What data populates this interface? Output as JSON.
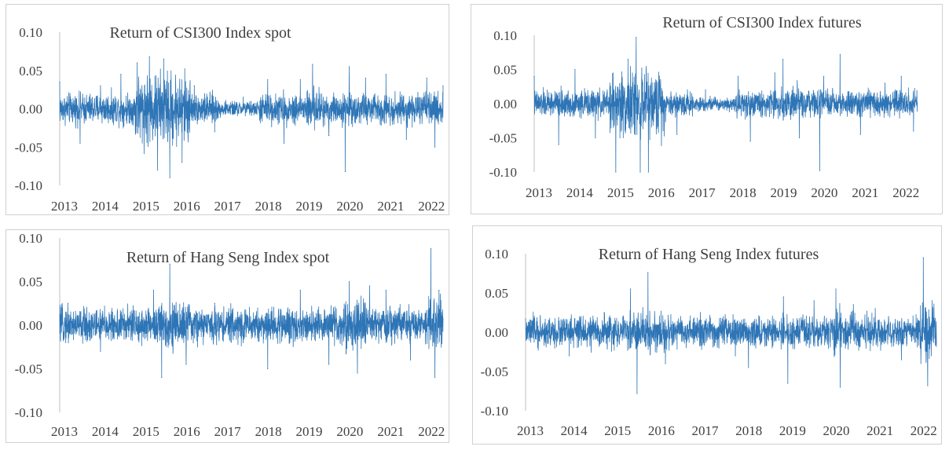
{
  "colors": {
    "series": "#2e75b6",
    "axis": "#bfbfbf",
    "text": "#404040"
  },
  "chart_data": [
    {
      "type": "line",
      "title": "Return of CSI300 Index spot",
      "xlabel": "",
      "ylabel": "",
      "ylim": [
        -0.1,
        0.1
      ],
      "yticks": [
        -0.1,
        -0.05,
        0.0,
        0.05,
        0.1
      ],
      "ytick_labels": [
        "-0.10",
        "-0.05",
        "0.00",
        "0.05",
        "0.10"
      ],
      "xlim": [
        2013,
        2022.4
      ],
      "xtick_labels": [
        "2013",
        "2014",
        "2015",
        "2016",
        "2017",
        "2018",
        "2019",
        "2020",
        "2021",
        "2022"
      ],
      "grid": false,
      "legend": "none",
      "series": [
        {
          "x": [
            2013.0,
            2013.5,
            2014.0,
            2014.5,
            2014.9,
            2015.2,
            2015.4,
            2015.55,
            2015.7,
            2016.0,
            2016.3,
            2016.8,
            2017.5,
            2018.1,
            2018.5,
            2018.9,
            2019.2,
            2019.6,
            2020.0,
            2020.1,
            2020.5,
            2021.0,
            2021.5,
            2022.0,
            2022.2,
            2022.4
          ],
          "values": [
            0.035,
            -0.045,
            0.03,
            0.045,
            0.06,
            0.068,
            -0.08,
            0.065,
            -0.09,
            -0.07,
            0.03,
            -0.03,
            0.015,
            0.038,
            -0.045,
            0.038,
            0.058,
            -0.035,
            -0.082,
            0.055,
            0.04,
            0.045,
            -0.04,
            0.04,
            -0.05,
            0.03
          ]
        }
      ]
    },
    {
      "type": "line",
      "title": "Return of CSI300 Index futures",
      "xlabel": "",
      "ylabel": "",
      "ylim": [
        -0.1,
        0.1
      ],
      "yticks": [
        -0.1,
        -0.05,
        0.0,
        0.05,
        0.1
      ],
      "ytick_labels": [
        "-0.10",
        "-0.05",
        "0.00",
        "0.05",
        "0.10"
      ],
      "xlim": [
        2013,
        2022.4
      ],
      "xtick_labels": [
        "2013",
        "2014",
        "2015",
        "2016",
        "2017",
        "2018",
        "2019",
        "2020",
        "2021",
        "2022"
      ],
      "grid": false,
      "legend": "none",
      "series": [
        {
          "x": [
            2013.0,
            2013.6,
            2014.0,
            2014.5,
            2015.0,
            2015.3,
            2015.5,
            2015.6,
            2015.8,
            2016.1,
            2016.5,
            2017.2,
            2018.0,
            2018.3,
            2018.9,
            2019.1,
            2019.5,
            2020.0,
            2020.1,
            2020.5,
            2021.0,
            2021.6,
            2022.0,
            2022.3
          ],
          "values": [
            0.04,
            -0.06,
            0.05,
            -0.05,
            -0.1,
            0.065,
            0.097,
            -0.1,
            -0.1,
            0.035,
            -0.045,
            0.02,
            0.04,
            -0.055,
            0.045,
            0.065,
            -0.05,
            -0.098,
            0.04,
            0.072,
            -0.045,
            0.03,
            0.04,
            -0.04
          ]
        }
      ]
    },
    {
      "type": "line",
      "title": "Return of Hang Seng Index spot",
      "xlabel": "",
      "ylabel": "",
      "ylim": [
        -0.1,
        0.1
      ],
      "yticks": [
        -0.1,
        -0.05,
        0.0,
        0.05,
        0.1
      ],
      "ytick_labels": [
        "-0.10",
        "-0.05",
        "0.00",
        "0.05",
        "0.10"
      ],
      "xlim": [
        2013,
        2022.4
      ],
      "xtick_labels": [
        "2013",
        "2014",
        "2015",
        "2016",
        "2017",
        "2018",
        "2019",
        "2020",
        "2021",
        "2022"
      ],
      "grid": false,
      "legend": "none",
      "series": [
        {
          "x": [
            2013.2,
            2014.0,
            2014.8,
            2015.3,
            2015.5,
            2015.7,
            2016.1,
            2016.8,
            2017.5,
            2018.1,
            2018.9,
            2019.6,
            2020.1,
            2020.3,
            2020.6,
            2021.0,
            2021.6,
            2022.1,
            2022.2,
            2022.3
          ],
          "values": [
            0.025,
            -0.03,
            0.022,
            0.04,
            -0.06,
            0.07,
            -0.045,
            0.025,
            -0.02,
            -0.05,
            0.04,
            -0.045,
            0.05,
            -0.055,
            0.045,
            0.04,
            -0.04,
            0.088,
            -0.06,
            0.04
          ]
        }
      ]
    },
    {
      "type": "line",
      "title": "Return of Hang Seng Index futures",
      "xlabel": "",
      "ylabel": "",
      "ylim": [
        -0.1,
        0.1
      ],
      "yticks": [
        -0.1,
        -0.05,
        0.0,
        0.05,
        0.1
      ],
      "ytick_labels": [
        "-0.10",
        "-0.05",
        "0.00",
        "0.05",
        "0.10"
      ],
      "xlim": [
        2013,
        2022.4
      ],
      "xtick_labels": [
        "2013",
        "2014",
        "2015",
        "2016",
        "2017",
        "2018",
        "2019",
        "2020",
        "2021",
        "2022"
      ],
      "grid": false,
      "legend": "none",
      "series": [
        {
          "x": [
            2013.2,
            2014.0,
            2014.8,
            2015.4,
            2015.55,
            2015.8,
            2016.2,
            2017.0,
            2017.8,
            2018.1,
            2018.9,
            2019.0,
            2019.6,
            2020.1,
            2020.2,
            2020.5,
            2021.0,
            2021.6,
            2022.1,
            2022.2,
            2022.3
          ],
          "values": [
            0.02,
            -0.03,
            0.025,
            0.055,
            -0.078,
            0.076,
            -0.04,
            0.025,
            -0.03,
            -0.045,
            0.045,
            -0.065,
            0.04,
            0.055,
            -0.07,
            0.035,
            0.03,
            -0.035,
            0.095,
            -0.068,
            0.04
          ]
        }
      ]
    }
  ]
}
